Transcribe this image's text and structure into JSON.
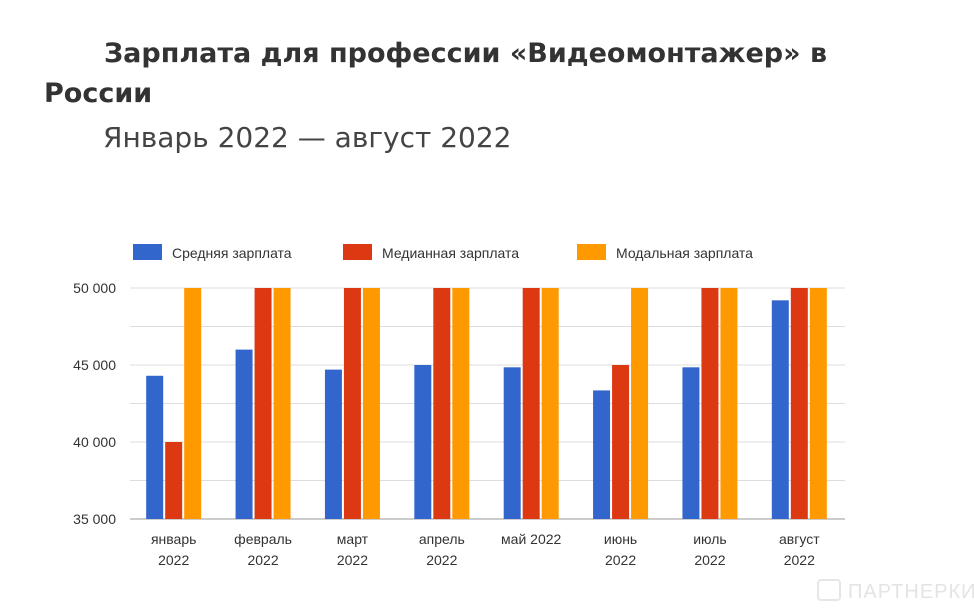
{
  "chart_data": {
    "type": "bar",
    "title": "Зарплата для профессии «Видеомонтажер» в России",
    "subtitle": "Январь 2022 — август 2022",
    "categories": [
      [
        "январь",
        "2022"
      ],
      [
        "февраль",
        "2022"
      ],
      [
        "март",
        "2022"
      ],
      [
        "апрель",
        "2022"
      ],
      [
        "май 2022",
        ""
      ],
      [
        "июнь",
        "2022"
      ],
      [
        "июль",
        "2022"
      ],
      [
        "август",
        "2022"
      ]
    ],
    "series": [
      {
        "name": "Средняя зарплата",
        "color": "#3366cc",
        "values": [
          44300,
          46000,
          44700,
          45000,
          44850,
          43350,
          44850,
          49200
        ]
      },
      {
        "name": "Медианная зарплата",
        "color": "#dc3912",
        "values": [
          40000,
          50000,
          50000,
          50000,
          50000,
          45000,
          50000,
          50000
        ]
      },
      {
        "name": "Модальная зарплата",
        "color": "#ff9900",
        "values": [
          50000,
          50000,
          50000,
          50000,
          50000,
          50000,
          50000,
          50000
        ]
      }
    ],
    "ylim": [
      35000,
      50000
    ],
    "yticks": [
      "35 000",
      "40 000",
      "45 000",
      "50 000"
    ],
    "ytick_values": [
      35000,
      40000,
      45000,
      50000
    ],
    "grid_step": 2500,
    "legend": "top",
    "xlabel": "",
    "ylabel": ""
  },
  "watermark": "ПАРТНЕРКИН"
}
